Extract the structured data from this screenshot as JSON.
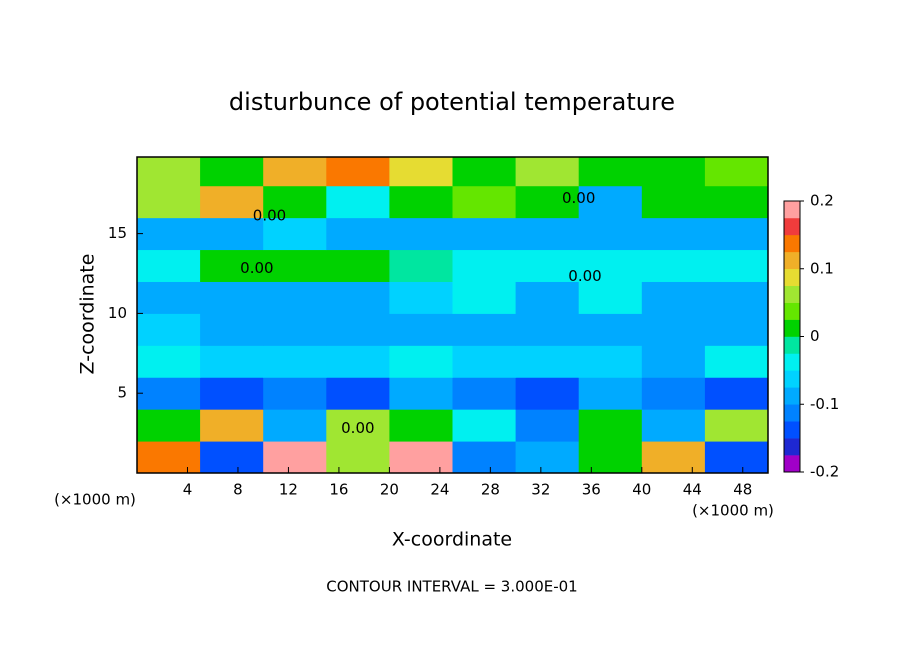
{
  "chart_data": {
    "type": "heatmap",
    "title": "disturbunce of potential temperature",
    "xlabel": "X-coordinate",
    "ylabel": "Z-coordinate",
    "x_unit_label": "(×1000 m)",
    "footer": "CONTOUR INTERVAL = 3.000E-01",
    "xlim": [
      0,
      50
    ],
    "ylim": [
      0,
      19.8
    ],
    "xticks": [
      4,
      8,
      12,
      16,
      20,
      24,
      28,
      32,
      36,
      40,
      44,
      48
    ],
    "yticks": [
      5,
      10,
      15
    ],
    "xbins": [
      0,
      5,
      10,
      15,
      20,
      25,
      30,
      35,
      40,
      45,
      50
    ],
    "zbins": [
      0,
      2,
      4,
      6,
      8,
      10,
      12,
      14,
      16,
      18,
      19.8
    ],
    "values": [
      [
        0.15,
        -0.15,
        0.18,
        0.05,
        0.18,
        -0.12,
        -0.1,
        0.0,
        0.12,
        -0.15
      ],
      [
        0.0,
        0.1,
        -0.1,
        0.05,
        0.0,
        -0.05,
        -0.12,
        0.02,
        -0.08,
        0.05
      ],
      [
        -0.12,
        -0.13,
        -0.12,
        -0.13,
        -0.1,
        -0.12,
        -0.13,
        -0.1,
        -0.12,
        -0.13
      ],
      [
        -0.05,
        -0.07,
        -0.06,
        -0.07,
        -0.05,
        -0.07,
        -0.06,
        -0.07,
        -0.08,
        -0.05
      ],
      [
        -0.06,
        -0.1,
        -0.1,
        -0.1,
        -0.1,
        -0.1,
        -0.1,
        -0.1,
        -0.1,
        -0.08
      ],
      [
        -0.1,
        -0.1,
        -0.09,
        -0.1,
        -0.06,
        -0.05,
        -0.08,
        -0.05,
        -0.1,
        -0.1
      ],
      [
        -0.03,
        0.0,
        0.0,
        0.0,
        -0.01,
        -0.03,
        -0.05,
        -0.05,
        -0.05,
        -0.05
      ],
      [
        -0.08,
        -0.08,
        -0.06,
        -0.08,
        -0.09,
        -0.08,
        -0.08,
        -0.08,
        -0.08,
        -0.08
      ],
      [
        0.05,
        0.1,
        0.0,
        -0.05,
        0.02,
        0.03,
        0.0,
        -0.08,
        0.02,
        0.0
      ],
      [
        0.05,
        0.0,
        0.1,
        0.15,
        0.08,
        0.0,
        0.05,
        0.02,
        0.0,
        0.04
      ]
    ],
    "contour_labels": [
      {
        "text": "0.00",
        "x": 10.5,
        "z": 16.1
      },
      {
        "text": "0.00",
        "x": 9.5,
        "z": 12.8
      },
      {
        "text": "0.00",
        "x": 17.5,
        "z": 2.8
      },
      {
        "text": "0.00",
        "x": 35.5,
        "z": 12.3
      },
      {
        "text": "0.00",
        "x": 35.0,
        "z": 17.2
      }
    ],
    "colorbar": {
      "lim": [
        -0.2,
        0.2
      ],
      "ticks": [
        -0.2,
        -0.1,
        0,
        0.1,
        0.2
      ],
      "colors": [
        "#a000c8",
        "#1e28d2",
        "#0050ff",
        "#0082ff",
        "#00aaff",
        "#00d2ff",
        "#00f0f0",
        "#00e6a0",
        "#00d200",
        "#64e600",
        "#a0e632",
        "#e6dc32",
        "#f0af28",
        "#fa7800",
        "#f03c3c",
        "#ffa0a0"
      ]
    }
  }
}
